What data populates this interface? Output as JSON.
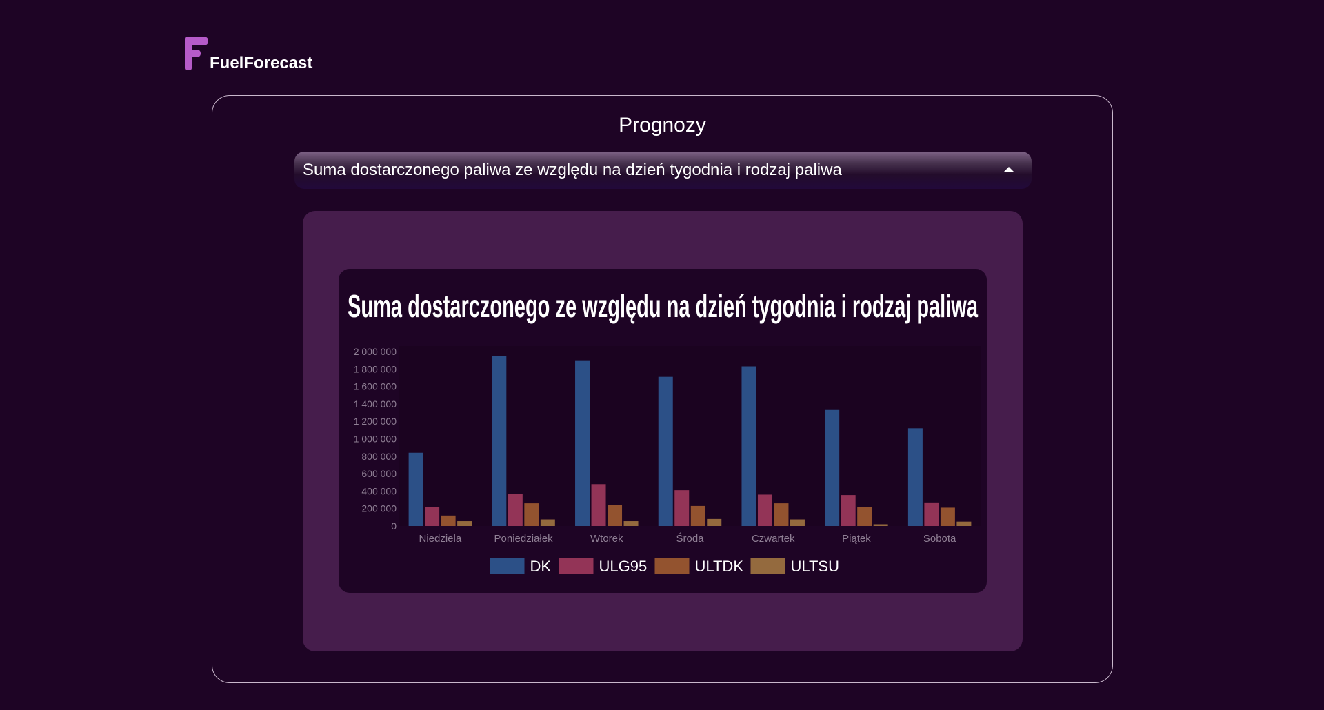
{
  "brand": {
    "logo_letter": "F",
    "name": "FuelForecast"
  },
  "page": {
    "title": "Prognozy"
  },
  "report_select": {
    "value": "Suma dostarczonego paliwa ze względu na dzień tygodnia i rodzaj paliwa"
  },
  "colors": {
    "background": "#1e0425",
    "outer_panel": "#461d4c",
    "logo": "#b65bc9"
  },
  "chart_data": {
    "type": "bar",
    "title": "Suma dostarczonego ze względu na dzień tygodnia i rodzaj paliwa",
    "xlabel": "",
    "ylabel": "",
    "ylim": [
      0,
      2000000
    ],
    "y_ticks": [
      {
        "value": 0,
        "label": "0"
      },
      {
        "value": 200000,
        "label": "200 000"
      },
      {
        "value": 400000,
        "label": "400 000"
      },
      {
        "value": 600000,
        "label": "600 000"
      },
      {
        "value": 800000,
        "label": "800 000"
      },
      {
        "value": 1000000,
        "label": "1 000 000"
      },
      {
        "value": 1200000,
        "label": "1 200 000"
      },
      {
        "value": 1400000,
        "label": "1 400 000"
      },
      {
        "value": 1600000,
        "label": "1 600 000"
      },
      {
        "value": 1800000,
        "label": "1 800 000"
      },
      {
        "value": 2000000,
        "label": "2 000 000"
      }
    ],
    "categories": [
      "Niedziela",
      "Poniedziałek",
      "Wtorek",
      "Środa",
      "Czwartek",
      "Piątek",
      "Sobota"
    ],
    "series": [
      {
        "name": "DK",
        "color": "#2c5087",
        "values": [
          840000,
          1950000,
          1900000,
          1710000,
          1830000,
          1330000,
          1120000
        ]
      },
      {
        "name": "ULG95",
        "color": "#933457",
        "values": [
          215000,
          370000,
          480000,
          410000,
          360000,
          355000,
          270000
        ]
      },
      {
        "name": "ULTDK",
        "color": "#93532f",
        "values": [
          120000,
          260000,
          245000,
          230000,
          260000,
          215000,
          210000
        ]
      },
      {
        "name": "ULTSU",
        "color": "#946a3e",
        "values": [
          55000,
          75000,
          55000,
          80000,
          75000,
          20000,
          50000
        ]
      }
    ],
    "grid": false,
    "legend": "bottom"
  }
}
